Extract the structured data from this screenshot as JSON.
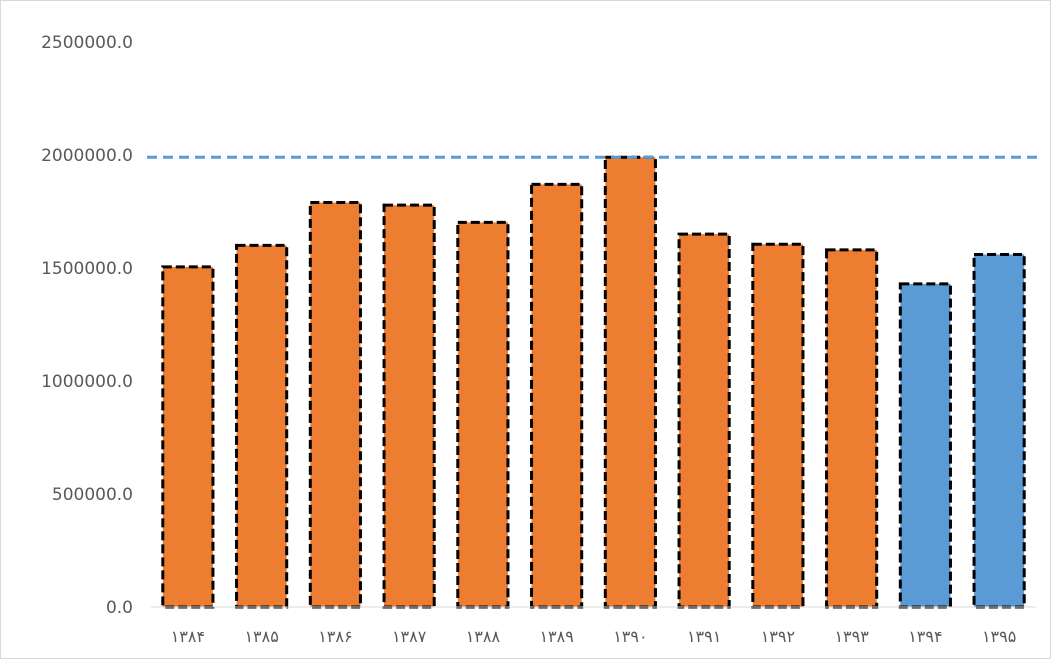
{
  "chart_data": {
    "type": "bar",
    "title": "",
    "xlabel": "",
    "ylabel": "",
    "categories": [
      "۱۳۸۴",
      "۱۳۸۵",
      "۱۳۸۶",
      "۱۳۸۷",
      "۱۳۸۸",
      "۱۳۸۹",
      "۱۳۹۰",
      "۱۳۹۱",
      "۱۳۹۲",
      "۱۳۹۳",
      "۱۳۹۴",
      "۱۳۹۵"
    ],
    "values": [
      1505000,
      1600000,
      1790000,
      1778000,
      1702000,
      1870000,
      1990000,
      1650000,
      1605000,
      1580000,
      1430000,
      1560000
    ],
    "bar_colors": [
      "#ed7d31",
      "#ed7d31",
      "#ed7d31",
      "#ed7d31",
      "#ed7d31",
      "#ed7d31",
      "#ed7d31",
      "#ed7d31",
      "#ed7d31",
      "#ed7d31",
      "#5b9bd5",
      "#5b9bd5"
    ],
    "ylim": [
      0,
      2500000
    ],
    "yticks": [
      "0.0",
      "500000.0",
      "1000000.0",
      "1500000.0",
      "2000000.0",
      "2500000.0"
    ],
    "ytick_values": [
      0,
      500000,
      1000000,
      1500000,
      2000000,
      2500000
    ],
    "reference_line": {
      "value": 1990000,
      "color": "#5b9bd5",
      "style": "dashed"
    },
    "bar_border": {
      "color": "#000000",
      "style": "dashed"
    },
    "grid": false,
    "legend": "none"
  }
}
